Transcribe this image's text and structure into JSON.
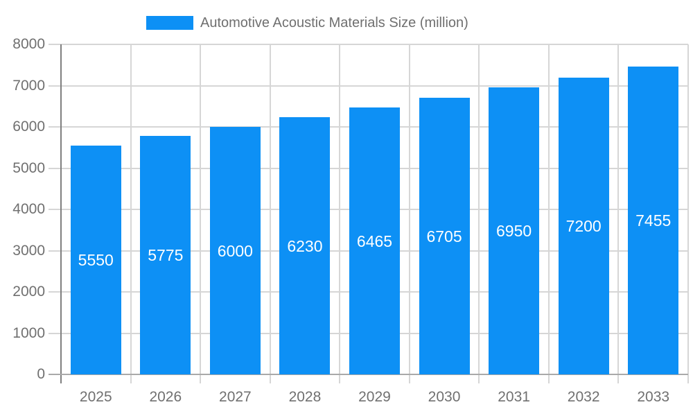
{
  "legend": {
    "label": "Automotive Acoustic Materials Size (million)",
    "swatch_color": "#0d90f5"
  },
  "chart_data": {
    "type": "bar",
    "title": "",
    "categories": [
      "2025",
      "2026",
      "2027",
      "2028",
      "2029",
      "2030",
      "2031",
      "2032",
      "2033"
    ],
    "series": [
      {
        "name": "Automotive Acoustic Materials Size (million)",
        "values": [
          5550,
          5775,
          6000,
          6230,
          6465,
          6705,
          6950,
          7200,
          7455
        ]
      }
    ],
    "value_labels_shown": true,
    "xlabel": "",
    "ylabel": "",
    "ylim": [
      0,
      8000
    ],
    "ytick_interval": 1000,
    "ytick_labels": [
      "0",
      "1000",
      "2000",
      "3000",
      "4000",
      "5000",
      "6000",
      "7000",
      "8000"
    ],
    "grid": "horizontal-and-vertical",
    "legend_position": "top",
    "colors": {
      "bar": "#0d90f5",
      "value_label_text": "#ffffff",
      "axis_text": "#707070",
      "gridline": "#d6d6d6",
      "baseline": "#a9a9a9",
      "yaxis_line": "#7f7f7f",
      "background": "#ffffff"
    }
  }
}
